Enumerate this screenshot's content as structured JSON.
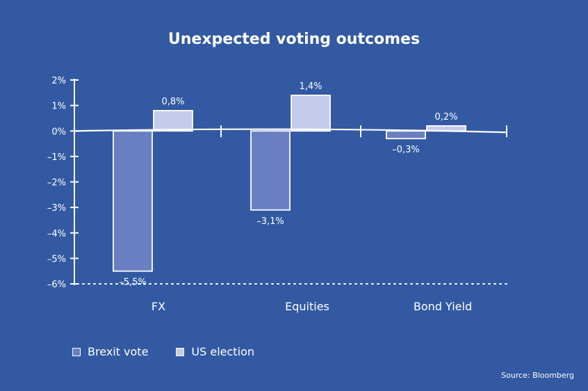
{
  "chart_data": {
    "type": "bar",
    "title": "Unexpected voting outcomes",
    "categories": [
      "FX",
      "Equities",
      "Bond Yield"
    ],
    "series": [
      {
        "name": "Brexit vote",
        "values": [
          -5.5,
          -3.1,
          -0.3
        ],
        "labels": [
          "–5,5%",
          "–3,1%",
          "–0,3%"
        ]
      },
      {
        "name": "US election",
        "values": [
          0.8,
          1.4,
          0.2
        ],
        "labels": [
          "0,8%",
          "1,4%",
          "0,2%"
        ]
      }
    ],
    "ylim": [
      -6,
      2
    ],
    "yticks": [
      2,
      1,
      0,
      -1,
      -2,
      -3,
      -4,
      -5,
      -6
    ],
    "ytick_labels": [
      "2%",
      "1%",
      "0%",
      "–1%",
      "–2%",
      "–3%",
      "–4%",
      "–5%",
      "–6%"
    ],
    "xlabel": "",
    "ylabel": "",
    "source": "Source: Bloomberg",
    "legend_position": "bottom-left"
  },
  "colors": {
    "background": "#3259a2",
    "brexit": "#6a7fc1",
    "us": "#c5cbeb",
    "axis": "#ffffff"
  }
}
